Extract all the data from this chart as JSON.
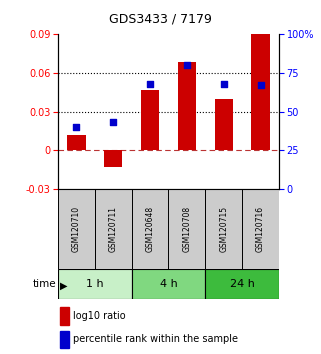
{
  "title": "GDS3433 / 7179",
  "samples": [
    "GSM120710",
    "GSM120711",
    "GSM120648",
    "GSM120708",
    "GSM120715",
    "GSM120716"
  ],
  "log10_ratio": [
    0.012,
    -0.013,
    0.047,
    0.068,
    0.04,
    0.09
  ],
  "percentile_rank": [
    40,
    43,
    68,
    80,
    68,
    67
  ],
  "time_groups": [
    {
      "label": "1 h",
      "samples": [
        0,
        1
      ],
      "color": "#c8f0c8"
    },
    {
      "label": "4 h",
      "samples": [
        2,
        3
      ],
      "color": "#80d880"
    },
    {
      "label": "24 h",
      "samples": [
        4,
        5
      ],
      "color": "#3dbb3d"
    }
  ],
  "bar_color": "#cc0000",
  "square_color": "#0000cc",
  "ylim_left": [
    -0.03,
    0.09
  ],
  "ylim_right": [
    0,
    100
  ],
  "yticks_left": [
    -0.03,
    0.0,
    0.03,
    0.06,
    0.09
  ],
  "yticks_right": [
    0,
    25,
    50,
    75,
    100
  ],
  "ytick_labels_left": [
    "-0.03",
    "0",
    "0.03",
    "0.06",
    "0.09"
  ],
  "ytick_labels_right": [
    "0",
    "25",
    "50",
    "75",
    "100%"
  ],
  "hlines": [
    0.03,
    0.06
  ],
  "zero_line": 0.0,
  "xlabel_time": "time",
  "legend_red": "log10 ratio",
  "legend_blue": "percentile rank within the sample",
  "bar_width": 0.5,
  "square_size": 25,
  "cell_bg": "#cccccc"
}
